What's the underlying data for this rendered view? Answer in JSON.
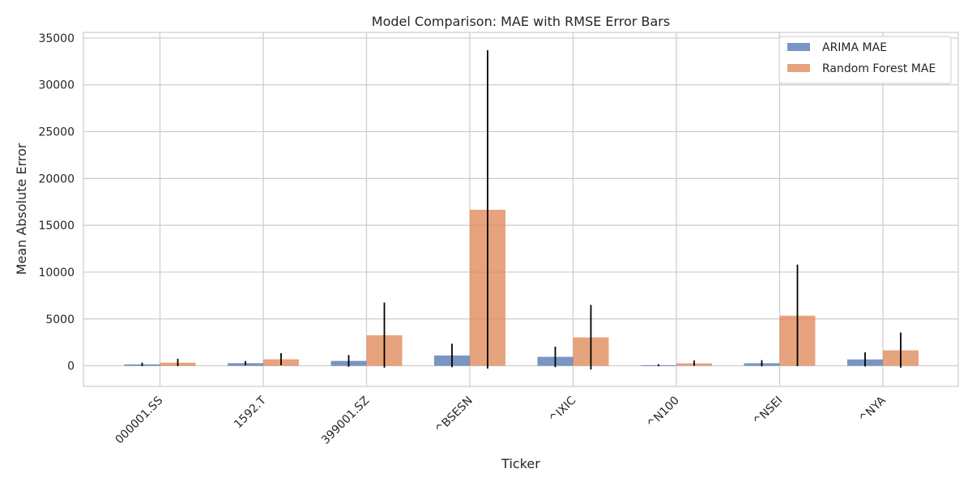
{
  "chart_data": {
    "type": "bar",
    "title": "Model Comparison: MAE with RMSE Error Bars",
    "xlabel": "Ticker",
    "ylabel": "Mean Absolute Error",
    "categories": [
      "000001.SS",
      "1592.T",
      "399001.SZ",
      "^BSESN",
      "^IXIC",
      "^N100",
      "^NSEI",
      "^NYA"
    ],
    "ylim": [
      -2200,
      35600
    ],
    "yticks": [
      0,
      5000,
      10000,
      15000,
      20000,
      25000,
      30000,
      35000
    ],
    "grid": true,
    "legend_position": "top-right",
    "series": [
      {
        "name": "ARIMA MAE",
        "color": "#4c72b0",
        "values": [
          150,
          280,
          520,
          1100,
          950,
          60,
          270,
          680
        ],
        "error": [
          220,
          220,
          620,
          1250,
          1100,
          110,
          330,
          750
        ]
      },
      {
        "name": "Random Forest MAE",
        "color": "#dd8452",
        "values": [
          330,
          690,
          3260,
          16660,
          3030,
          260,
          5350,
          1650
        ]
      }
    ],
    "error_extents": [
      [
        [
          -40,
          340
        ],
        [
          -40,
          750
        ]
      ],
      [
        [
          60,
          500
        ],
        [
          60,
          1350
        ]
      ],
      [
        [
          -100,
          1140
        ],
        [
          -200,
          6750
        ]
      ],
      [
        [
          -150,
          2350
        ],
        [
          -300,
          33700
        ]
      ],
      [
        [
          -150,
          2050
        ],
        [
          -400,
          6500
        ]
      ],
      [
        [
          -50,
          170
        ],
        [
          0,
          560
        ]
      ],
      [
        [
          -60,
          600
        ],
        [
          -50,
          10800
        ]
      ],
      [
        [
          -70,
          1430
        ],
        [
          -200,
          3550
        ]
      ]
    ]
  }
}
